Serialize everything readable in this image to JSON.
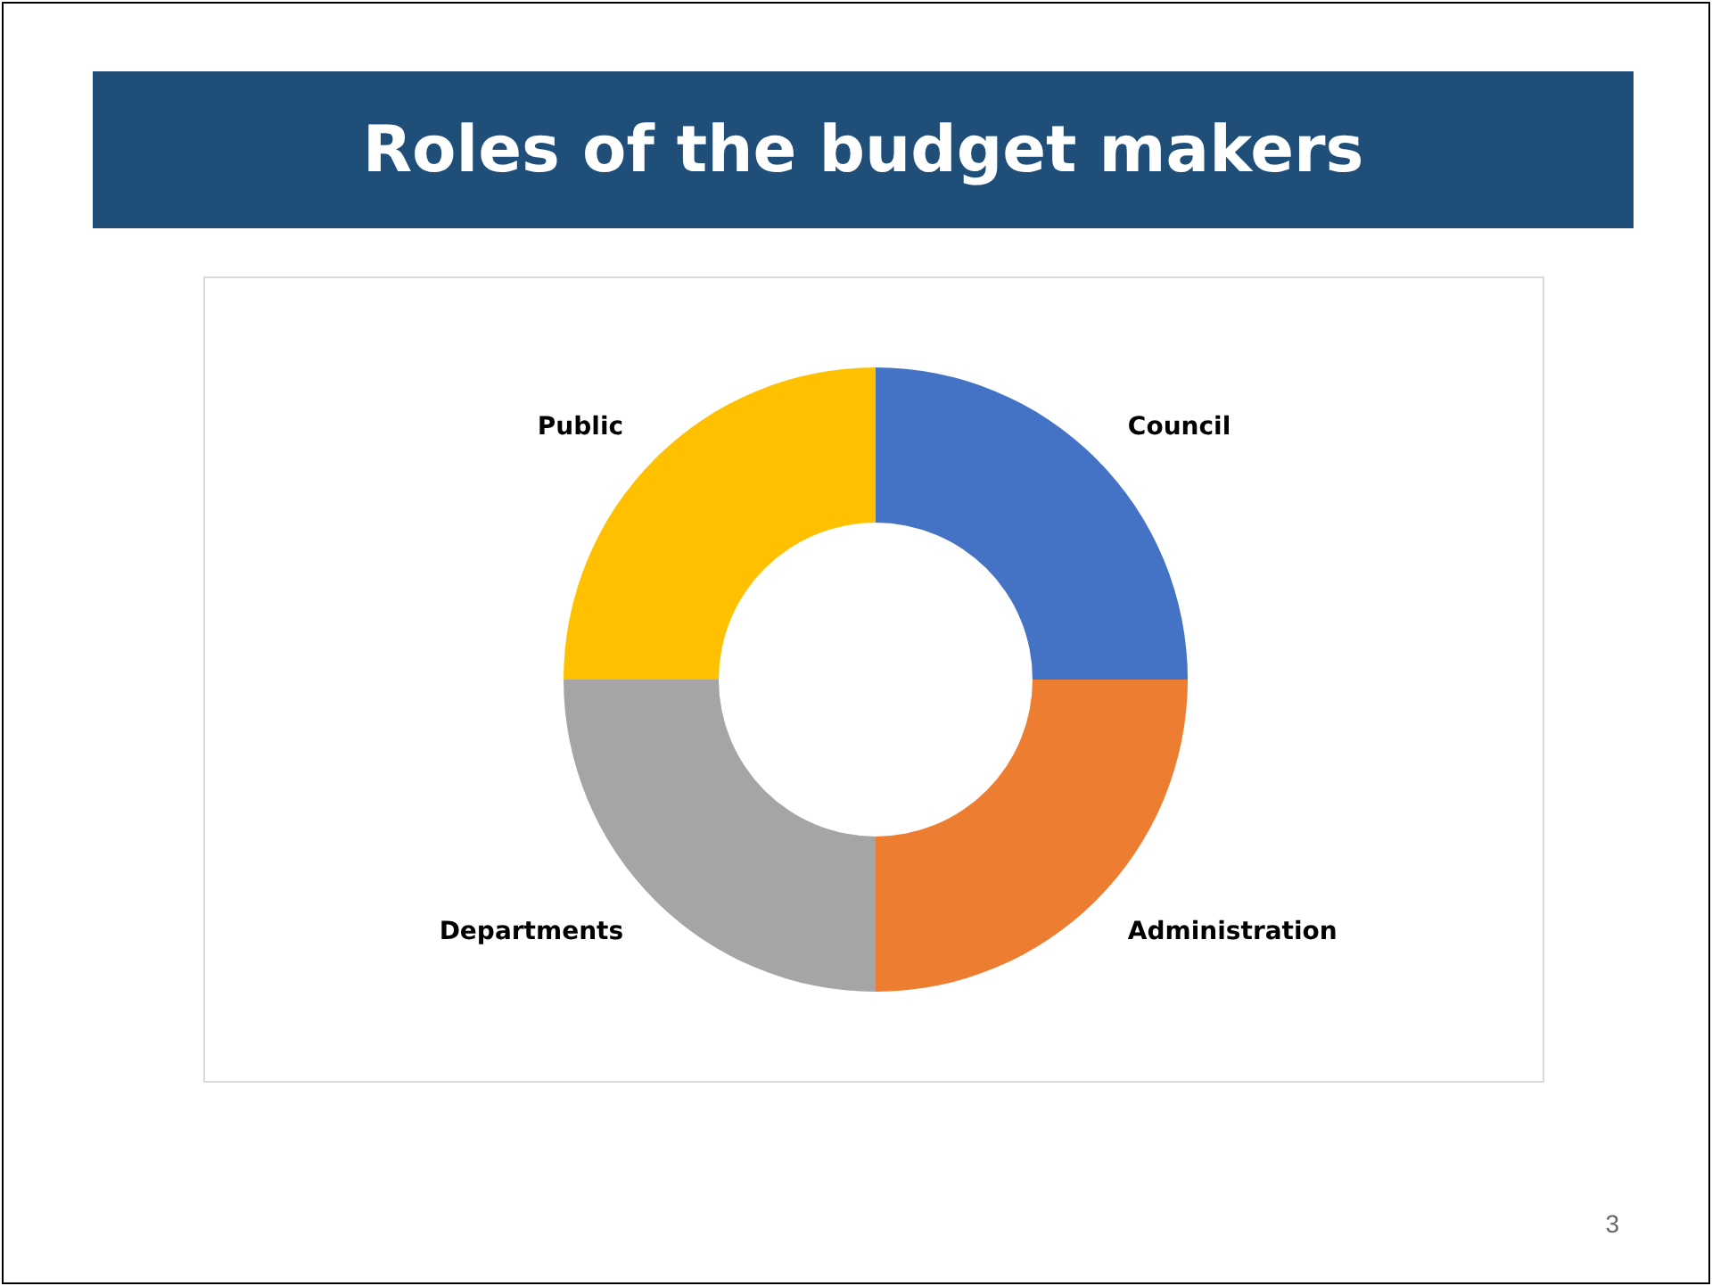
{
  "chart_data": {
    "type": "donut",
    "title": "Roles of the budget makers",
    "categories": [
      "Council",
      "Administration",
      "Departments",
      "Public"
    ],
    "values": [
      25,
      25,
      25,
      25
    ],
    "colors": [
      "#4472c4",
      "#ed7d31",
      "#a5a5a5",
      "#ffc000"
    ],
    "annotations": [
      "3"
    ]
  }
}
